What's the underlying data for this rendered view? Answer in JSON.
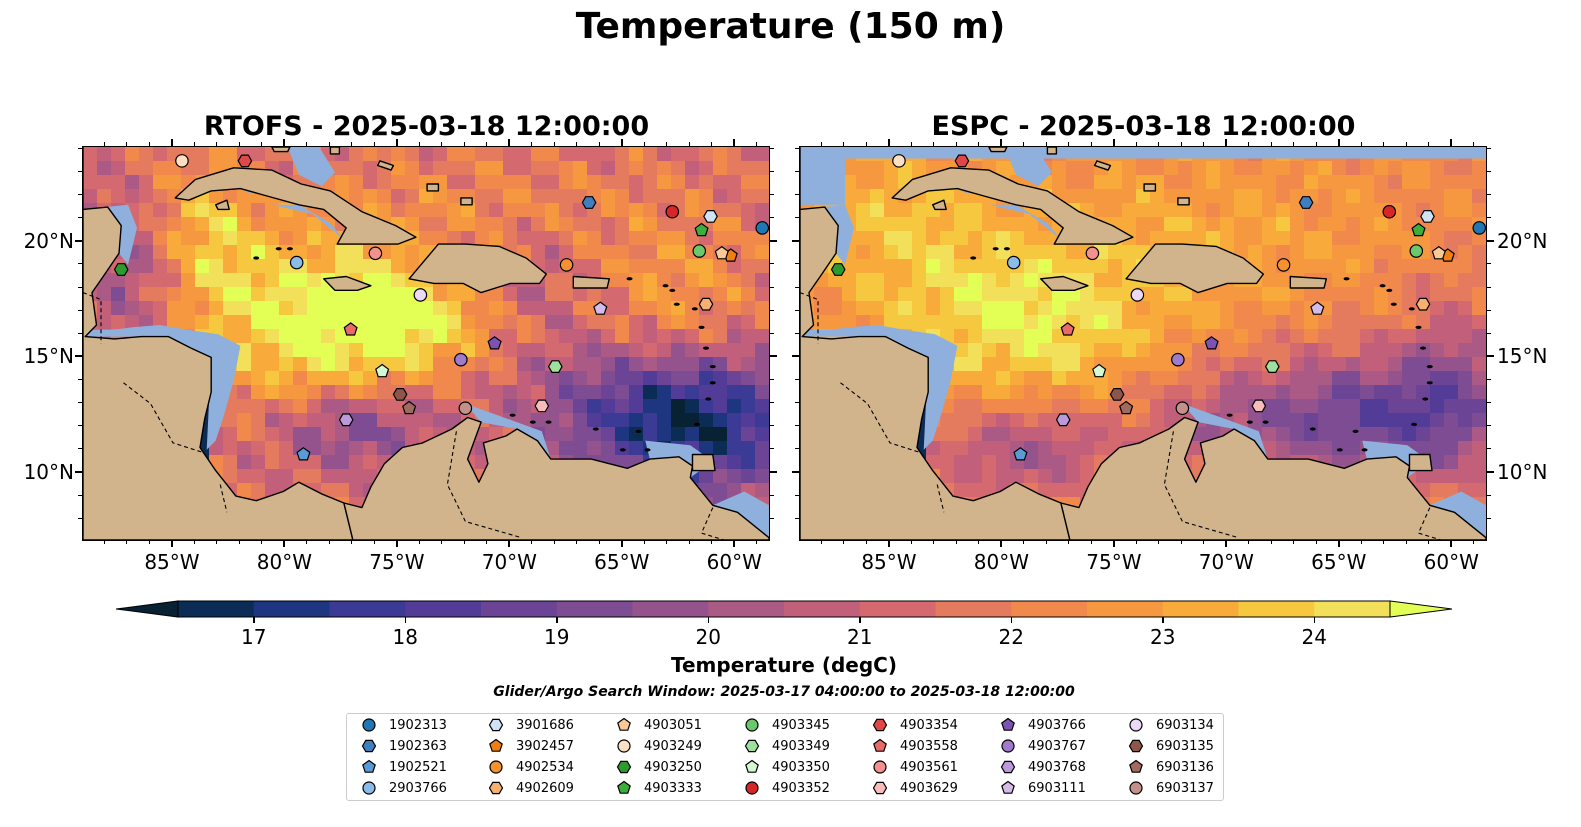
{
  "figure": {
    "suptitle": "Temperature (150 m)",
    "search_window": "Glider/Argo Search Window: 2025-03-17 04:00:00 to 2025-03-18 12:00:00"
  },
  "colors": {
    "land": "#d2b48c",
    "shallow_water": "#8fb0dc",
    "scale": [
      "#082234",
      "#0b2c55",
      "#1e3580",
      "#3b3a94",
      "#533c98",
      "#6b4496",
      "#7d4c92",
      "#94538d",
      "#ab5985",
      "#c2607c",
      "#d46a6f",
      "#e47a5e",
      "#f1884c",
      "#f6983f",
      "#f8ab3a",
      "#f5c83f",
      "#f3e05a",
      "#e3ff55"
    ]
  },
  "chart_data": [
    {
      "type": "heatmap",
      "title": "RTOFS - 2025-03-18 12:00:00",
      "variable": "Temperature",
      "units": "degC",
      "xlim": [
        -89,
        -58.5
      ],
      "ylim": [
        7.1,
        24.1
      ],
      "xticks": [
        -85,
        -80,
        -75,
        -70,
        -65,
        -60
      ],
      "xtick_labels": [
        "85°W",
        "80°W",
        "75°W",
        "70°W",
        "65°W",
        "60°W"
      ],
      "yticks": [
        10,
        15,
        20
      ],
      "ytick_labels": [
        "10°N",
        "15°N",
        "20°N"
      ],
      "ytick_side": "left",
      "field_summary": {
        "cold_deep_region_approx_degC": 17,
        "warm_core_approx_degC": 24.5,
        "typical_open_sea_degC": 21.5
      }
    },
    {
      "type": "heatmap",
      "title": "ESPC - 2025-03-18 12:00:00",
      "variable": "Temperature",
      "units": "degC",
      "xlim": [
        -89,
        -58.5
      ],
      "ylim": [
        7.1,
        24.1
      ],
      "xticks": [
        -85,
        -80,
        -75,
        -70,
        -65,
        -60
      ],
      "xtick_labels": [
        "85°W",
        "80°W",
        "75°W",
        "70°W",
        "65°W",
        "60°W"
      ],
      "yticks": [
        10,
        15,
        20
      ],
      "ytick_labels": [
        "10°N",
        "15°N",
        "20°N"
      ],
      "ytick_side": "right",
      "field_summary": {
        "cold_deep_region_approx_degC": 18.5,
        "warm_core_approx_degC": 24,
        "typical_open_sea_degC": 22.5
      }
    }
  ],
  "colorbar": {
    "label": "Temperature (degC)",
    "min": 16.5,
    "max": 24.5,
    "step": 0.5,
    "extend": "both",
    "ticks": [
      17,
      18,
      19,
      20,
      21,
      22,
      23,
      24
    ],
    "tick_labels": [
      "17",
      "18",
      "19",
      "20",
      "21",
      "22",
      "23",
      "24"
    ]
  },
  "floats": [
    {
      "id": "1902313",
      "marker": "circle",
      "color": "#1f77b4",
      "lon": -58.8,
      "lat": 20.6
    },
    {
      "id": "1902363",
      "marker": "hexagon",
      "color": "#3f7fbf",
      "lon": -66.5,
      "lat": 21.7
    },
    {
      "id": "1902521",
      "marker": "pentagon",
      "color": "#5a9bd5",
      "lon": -79.2,
      "lat": 10.8
    },
    {
      "id": "2903766",
      "marker": "circle",
      "color": "#8bbbe8",
      "lon": -79.5,
      "lat": 19.1
    },
    {
      "id": "3901686",
      "marker": "hexagon",
      "color": "#cfe3f5",
      "lon": -61.1,
      "lat": 21.1
    },
    {
      "id": "3902457",
      "marker": "pentagon",
      "color": "#f07f0f",
      "lon": -60.2,
      "lat": 19.4
    },
    {
      "id": "4902534",
      "marker": "circle",
      "color": "#f5922f",
      "lon": -67.5,
      "lat": 19.0
    },
    {
      "id": "4902609",
      "marker": "hexagon",
      "color": "#f8b070",
      "lon": -61.3,
      "lat": 17.3
    },
    {
      "id": "4903051",
      "marker": "pentagon",
      "color": "#fbc897",
      "lon": -60.6,
      "lat": 19.5
    },
    {
      "id": "4903249",
      "marker": "circle",
      "color": "#fde0c2",
      "lon": -84.6,
      "lat": 23.5
    },
    {
      "id": "4903250",
      "marker": "hexagon",
      "color": "#2c9a2c",
      "lon": -87.3,
      "lat": 18.8
    },
    {
      "id": "4903333",
      "marker": "pentagon",
      "color": "#3cae3c",
      "lon": -61.5,
      "lat": 20.5
    },
    {
      "id": "4903345",
      "marker": "circle",
      "color": "#6cc86c",
      "lon": -61.6,
      "lat": 19.6
    },
    {
      "id": "4903349",
      "marker": "hexagon",
      "color": "#9fe09f",
      "lon": -68.0,
      "lat": 14.6
    },
    {
      "id": "4903350",
      "marker": "pentagon",
      "color": "#d4f7d4",
      "lon": -75.7,
      "lat": 14.4
    },
    {
      "id": "4903352",
      "marker": "circle",
      "color": "#d62728",
      "lon": -62.8,
      "lat": 21.3
    },
    {
      "id": "4903354",
      "marker": "hexagon",
      "color": "#e04848",
      "lon": -81.8,
      "lat": 23.5
    },
    {
      "id": "4903558",
      "marker": "pentagon",
      "color": "#ea6a6a",
      "lon": -77.1,
      "lat": 16.2
    },
    {
      "id": "4903561",
      "marker": "circle",
      "color": "#f39090",
      "lon": -76.0,
      "lat": 19.5
    },
    {
      "id": "4903629",
      "marker": "hexagon",
      "color": "#f9bcbc",
      "lon": -68.6,
      "lat": 12.9
    },
    {
      "id": "4903766",
      "marker": "pentagon",
      "color": "#7e52b4",
      "lon": -70.7,
      "lat": 15.6
    },
    {
      "id": "4903767",
      "marker": "circle",
      "color": "#a07acb",
      "lon": -72.2,
      "lat": 14.9
    },
    {
      "id": "4903768",
      "marker": "hexagon",
      "color": "#bb9ada",
      "lon": -77.3,
      "lat": 12.3
    },
    {
      "id": "6903111",
      "marker": "pentagon",
      "color": "#d4bbea",
      "lon": -66.0,
      "lat": 17.1
    },
    {
      "id": "6903134",
      "marker": "circle",
      "color": "#ecd8f7",
      "lon": -74.0,
      "lat": 17.7
    },
    {
      "id": "6903135",
      "marker": "hexagon",
      "color": "#8c564b",
      "lon": -74.9,
      "lat": 13.4
    },
    {
      "id": "6903136",
      "marker": "pentagon",
      "color": "#a06a5e",
      "lon": -74.5,
      "lat": 12.8
    },
    {
      "id": "6903137",
      "marker": "circle",
      "color": "#c4908a",
      "lon": -72.0,
      "lat": 12.8
    }
  ]
}
